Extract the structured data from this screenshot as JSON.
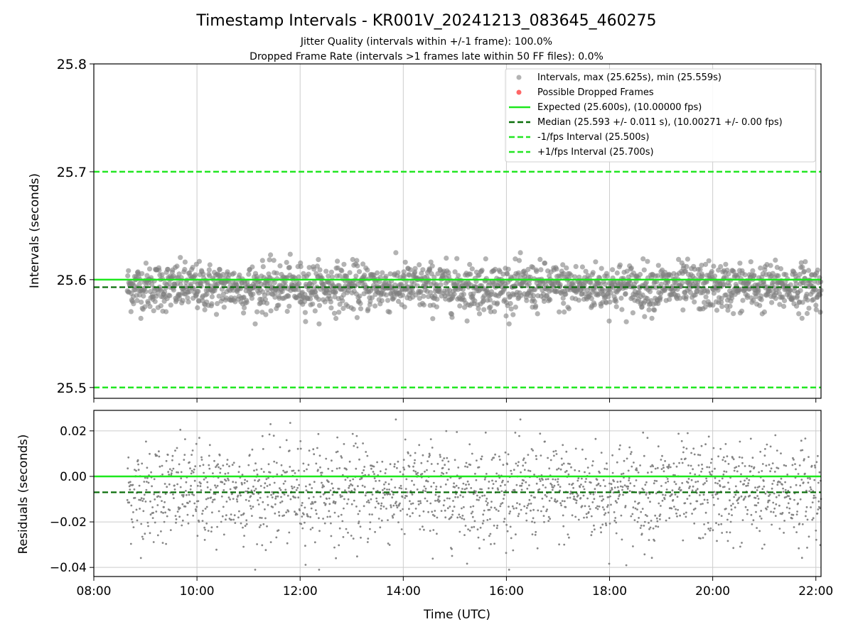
{
  "title": "Timestamp Intervals - KR001V_20241213_083645_460275",
  "subtitle_1": "Jitter Quality (intervals within +/-1 frame): 100.0%",
  "subtitle_2": "Dropped Frame Rate (intervals >1 frames late within 50 FF files): 0.0%",
  "colors": {
    "points": "#808080",
    "dropped": "#ff6666",
    "expected": "#1de81d",
    "median": "#0a6e0a",
    "bounds": "#22e622",
    "grid": "#cccccc"
  },
  "chart_data": [
    {
      "type": "scatter",
      "panel": "top",
      "ylabel": "Intervals (seconds)",
      "ylim": [
        25.49,
        25.8
      ],
      "yticks": [
        "25.5",
        "25.6",
        "25.7",
        "25.8"
      ],
      "xlim_hours": [
        8.0,
        22.1
      ],
      "grid": "vertical",
      "legend_position": "top-right",
      "legend": [
        "Intervals, max (25.625s), min (25.559s)",
        "Possible Dropped Frames",
        "Expected (25.600s), (10.00000 fps)",
        "Median (25.593 +/- 0.011 s), (10.00271 +/- 0.00 fps)",
        "-1/fps Interval (25.500s)",
        "+1/fps Interval (25.700s)"
      ],
      "expected": 25.6,
      "median": 25.593,
      "lower_bound": 25.5,
      "upper_bound": 25.7,
      "interval_max": 25.625,
      "interval_min": 25.559,
      "median_std": 0.011,
      "dropped_frames": []
    },
    {
      "type": "scatter",
      "panel": "bottom",
      "ylabel": "Residuals (seconds)",
      "xlabel": "Time (UTC)",
      "ylim": [
        -0.044,
        0.029
      ],
      "yticks": [
        "0.02",
        "0.00",
        "−0.02",
        "−0.04"
      ],
      "xticks": [
        "08:00",
        "10:00",
        "12:00",
        "14:00",
        "16:00",
        "18:00",
        "20:00",
        "22:00"
      ],
      "xlim_hours": [
        8.0,
        22.1
      ],
      "grid": "both",
      "expected": 0.0,
      "median": -0.007
    }
  ]
}
